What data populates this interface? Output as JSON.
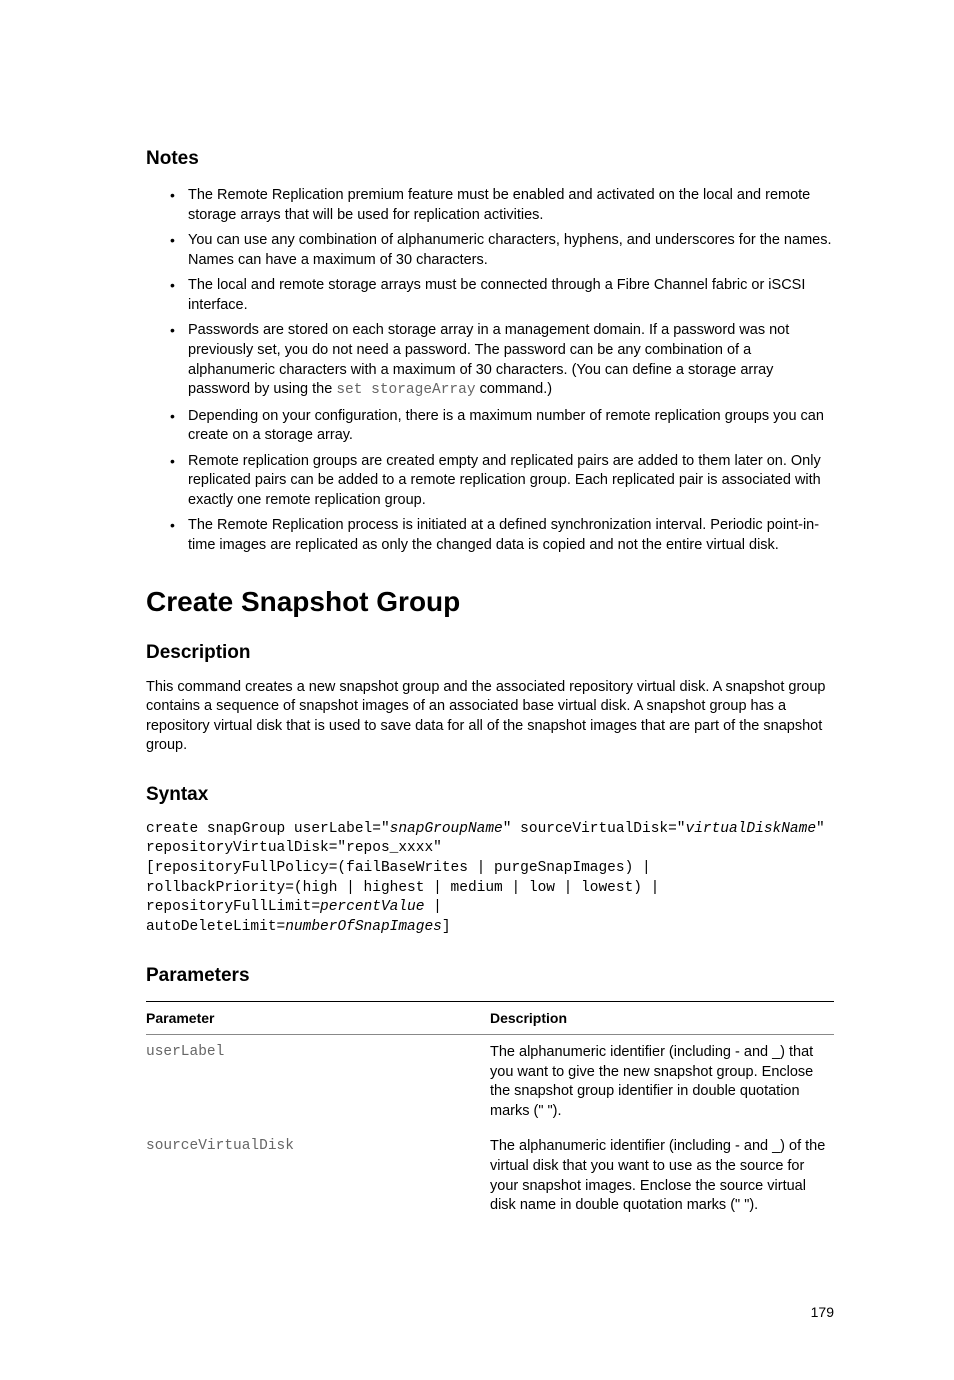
{
  "notes": {
    "heading": "Notes",
    "items": [
      "The Remote Replication premium feature must be enabled and activated on the local and remote storage arrays that will be used for replication activities.",
      "You can use any combination of alphanumeric characters, hyphens, and underscores for the names. Names can have a maximum of 30 characters.",
      "The local and remote storage arrays must be connected through a Fibre Channel fabric or iSCSI interface.",
      "Passwords are stored on each storage array in a management domain. If a password was not previously set, you do not need a password. The password can be any combination of a alphanumeric characters with a maximum of 30 characters. (You can define a storage array password by using the ",
      "Depending on your configuration, there is a maximum number of remote replication groups you can create on a storage array.",
      "Remote replication groups are created empty and replicated pairs are added to them later on. Only replicated pairs can be added to a remote replication group. Each replicated pair is associated with exactly one remote replication group.",
      "The Remote Replication process is initiated at a defined synchronization interval. Periodic point-in-time images are replicated as only the changed data is copied and not the entire virtual disk."
    ],
    "item3_code": "set storageArray",
    "item3_tail": " command.)"
  },
  "section": {
    "title": "Create Snapshot Group"
  },
  "description": {
    "heading": "Description",
    "text": "This command creates a new snapshot group and the associated repository virtual disk. A snapshot group contains a sequence of snapshot images of an associated base virtual disk. A snapshot group has a repository virtual disk that is used to save data for all of the snapshot images that are part of the snapshot group."
  },
  "syntax": {
    "heading": "Syntax",
    "line1a": "create snapGroup userLabel=\"",
    "line1b": "snapGroupName",
    "line1c": "\" sourceVirtualDisk=\"",
    "line1d": "virtualDiskName",
    "line1e": "\"",
    "line2": "repositoryVirtualDisk=\"repos_xxxx\"",
    "line3": "[repositoryFullPolicy=(failBaseWrites | purgeSnapImages) |",
    "line4": "rollbackPriority=(high | highest | medium | low | lowest) |",
    "line5a": "repositoryFullLimit=",
    "line5b": "percentValue",
    "line5c": " |",
    "line6a": "autoDeleteLimit=",
    "line6b": "numberOfSnapImages",
    "line6c": "]"
  },
  "parameters": {
    "heading": "Parameters",
    "col1": "Parameter",
    "col2": "Description",
    "rows": [
      {
        "param": "userLabel",
        "desc": "The alphanumeric identifier (including - and _) that you want to give the new snapshot group. Enclose the snapshot group identifier in double quotation marks (\" \")."
      },
      {
        "param": "sourceVirtualDisk",
        "desc": "The alphanumeric identifier (including - and _) of the virtual disk that you want to use as the source for your snapshot images. Enclose the source virtual disk name in double quotation marks (\" \")."
      }
    ]
  },
  "pageNumber": "179"
}
